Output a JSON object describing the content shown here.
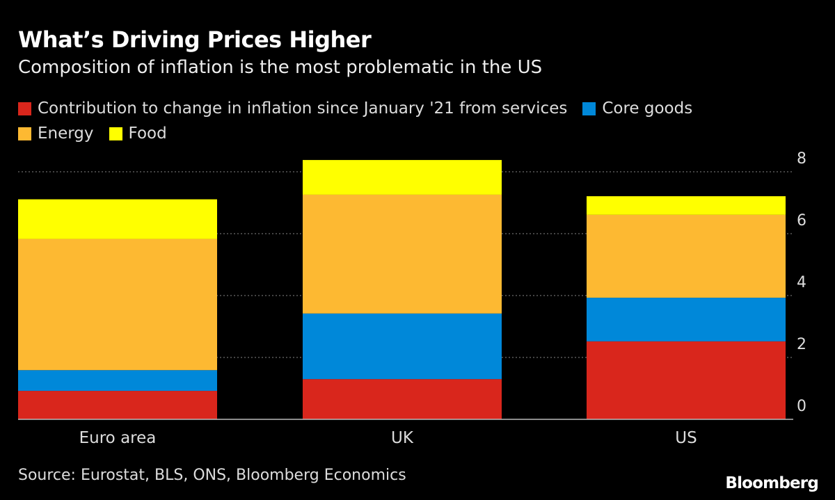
{
  "title": "What’s Driving Prices Higher",
  "subtitle": "Composition of inflation is the most problematic in the US",
  "source": "Source: Eurostat, BLS, ONS, Bloomberg Economics",
  "logo": "Bloomberg",
  "chart_data": {
    "type": "bar",
    "stacked": true,
    "categories": [
      "Euro area",
      "UK",
      "US"
    ],
    "series": [
      {
        "name": "Contribution to change in inflation since January '21 from services",
        "color": "#d9261c",
        "values": [
          0.92,
          1.3,
          2.52
        ]
      },
      {
        "name": "Core goods",
        "color": "#0088d9",
        "values": [
          0.67,
          2.12,
          1.41
        ]
      },
      {
        "name": "Energy",
        "color": "#fdb932",
        "values": [
          4.24,
          3.84,
          2.68
        ]
      },
      {
        "name": "Food",
        "color": "#ffff00",
        "values": [
          1.28,
          1.12,
          0.6
        ]
      }
    ],
    "ylim": [
      0,
      8
    ],
    "yticks": [
      "0",
      "2",
      "4",
      "6",
      "8"
    ],
    "y_axis_side": "right",
    "grid": true,
    "legend_position": "top"
  }
}
